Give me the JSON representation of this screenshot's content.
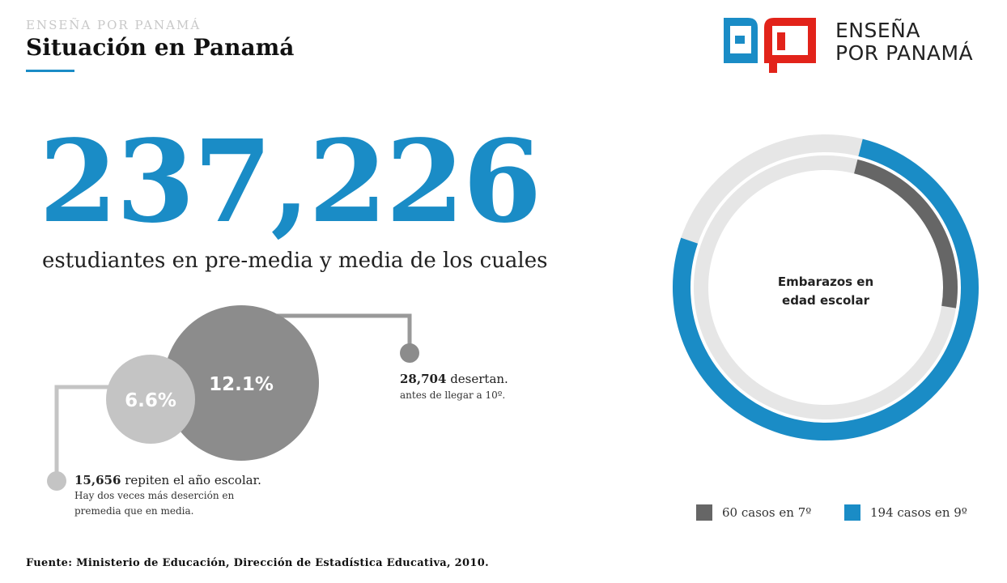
{
  "header": {
    "kicker": "ENSEÑA POR PANAMÁ",
    "title": "Situación en Panamá"
  },
  "logo": {
    "line1": "ENSEÑA",
    "line2": "POR PANAMÁ",
    "colors": {
      "blue": "#1a8cc6",
      "red": "#e2231a"
    }
  },
  "headline": {
    "number": "237,226",
    "description": "estudiantes en pre-media y media de los cuales"
  },
  "bubbles": {
    "large": {
      "label": "12.1%",
      "value": 12.1,
      "color": "#8c8c8c"
    },
    "small": {
      "label": "6.6%",
      "value": 6.6,
      "color": "#c4c4c4"
    },
    "dropout": {
      "count": "28,704",
      "text": " desertan.",
      "note": "antes de llegar a 10º."
    },
    "repeat": {
      "count": "15,656",
      "text": " repiten el año escolar.",
      "note_line1": "Hay dos veces más deserción en",
      "note_line2": "premedia que en media."
    }
  },
  "ring": {
    "label_line1": "Embarazos en",
    "label_line2": "edad escolar",
    "series": [
      {
        "name": "60 casos en 7º",
        "value": 60,
        "color": "#666666"
      },
      {
        "name": "194 casos en 9º",
        "value": 194,
        "color": "#1a8cc6"
      }
    ],
    "track_color": "#e6e6e6"
  },
  "source": "Fuente: Ministerio de Educación, Dirección de Estadística Educativa, 2010."
}
